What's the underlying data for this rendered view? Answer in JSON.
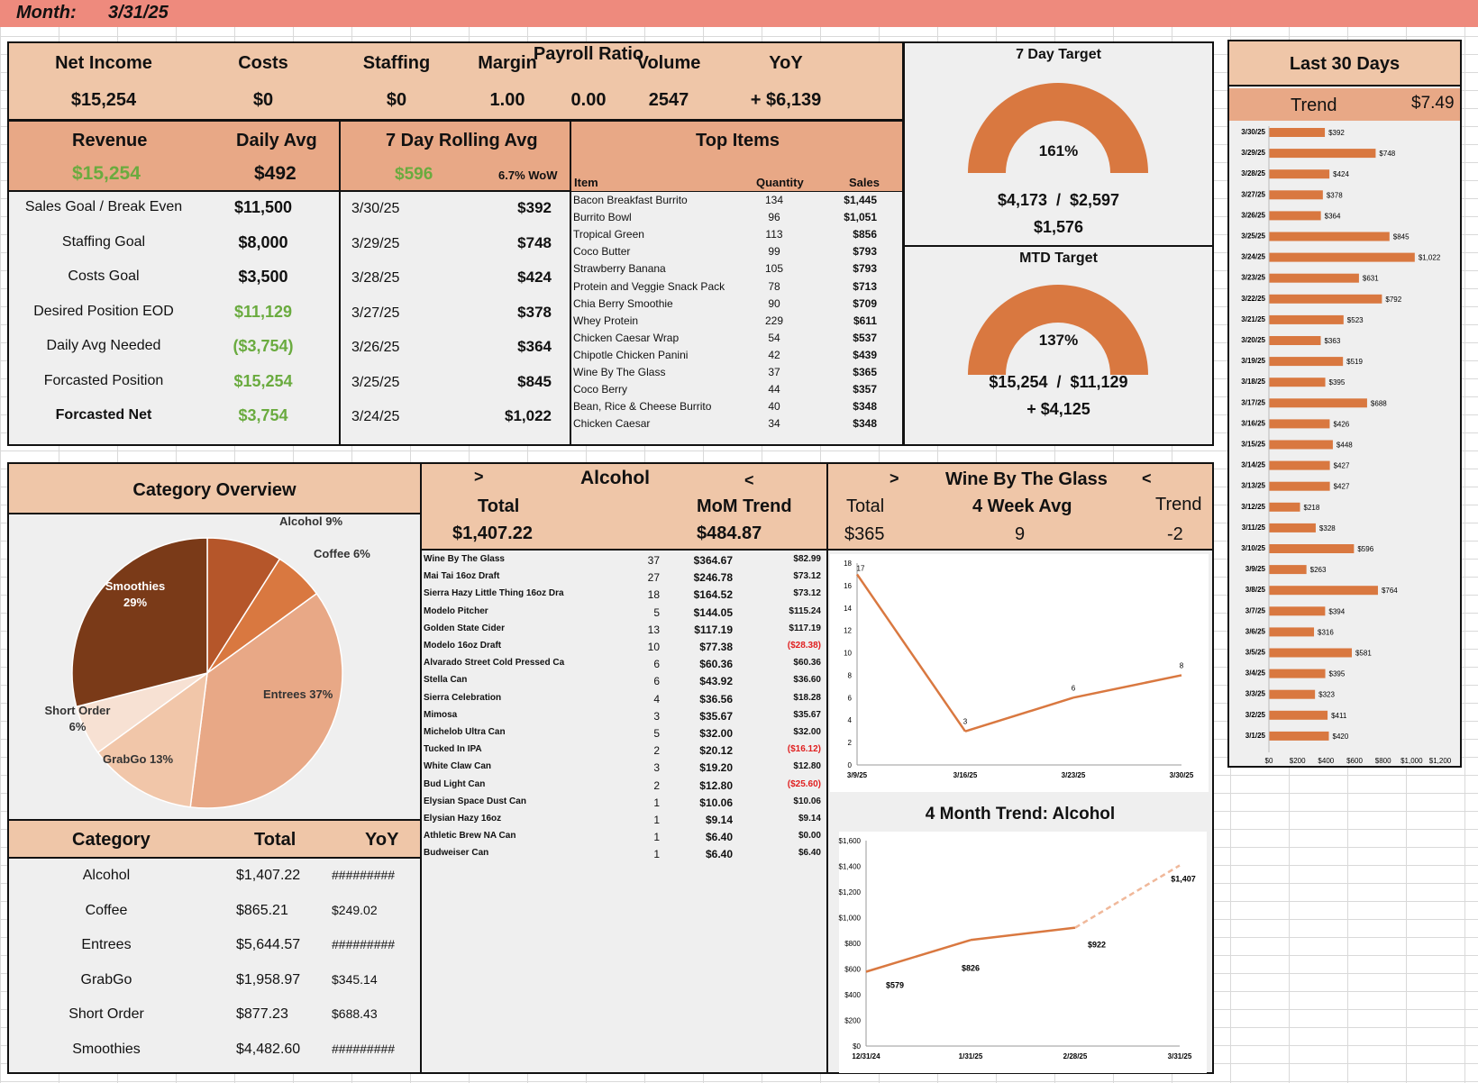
{
  "header": {
    "month_label": "Month:",
    "month_value": "3/31/25"
  },
  "kpis": [
    {
      "label": "Net Income",
      "value": "$15,254"
    },
    {
      "label": "Costs",
      "value": "$0"
    },
    {
      "label": "Staffing",
      "value": "$0"
    },
    {
      "label": "Margin",
      "value": "1.00"
    },
    {
      "label": "Payroll Ratio",
      "value": "0.00"
    },
    {
      "label": "Volume",
      "value": "2547"
    },
    {
      "label": "YoY",
      "value": "+ $6,139"
    }
  ],
  "revenue": {
    "label": "Revenue",
    "value": "$15,254",
    "daily_avg_label": "Daily Avg",
    "daily_avg": "$492"
  },
  "goals": [
    {
      "label": "Sales Goal / Break Even",
      "value": "$11,500",
      "color": "#111111"
    },
    {
      "label": "Staffing Goal",
      "value": "$8,000",
      "color": "#111111"
    },
    {
      "label": "Costs Goal",
      "value": "$3,500",
      "color": "#111111"
    },
    {
      "label": "Desired Position EOD",
      "value": "$11,129",
      "color": "#6aab3f"
    },
    {
      "label": "Daily Avg Needed",
      "value": "($3,754)",
      "color": "#6aab3f"
    },
    {
      "label": "Forcasted Position",
      "value": "$15,254",
      "color": "#6aab3f"
    },
    {
      "label": "Forcasted Net",
      "value": "$3,754",
      "color": "#6aab3f"
    }
  ],
  "rolling": {
    "title": "7 Day Rolling Avg",
    "value": "$596",
    "wow": "6.7% WoW",
    "rows": [
      {
        "date": "3/30/25",
        "value": "$392"
      },
      {
        "date": "3/29/25",
        "value": "$748"
      },
      {
        "date": "3/28/25",
        "value": "$424"
      },
      {
        "date": "3/27/25",
        "value": "$378"
      },
      {
        "date": "3/26/25",
        "value": "$364"
      },
      {
        "date": "3/25/25",
        "value": "$845"
      },
      {
        "date": "3/24/25",
        "value": "$1,022"
      }
    ]
  },
  "top_items": {
    "title": "Top Items",
    "headers": [
      "Item",
      "Quantity",
      "Sales"
    ],
    "rows": [
      [
        "Bacon Breakfast Burrito",
        "134",
        "$1,445"
      ],
      [
        "Burrito Bowl",
        "96",
        "$1,051"
      ],
      [
        "Tropical Green",
        "113",
        "$856"
      ],
      [
        "Coco Butter",
        "99",
        "$793"
      ],
      [
        "Strawberry Banana",
        "105",
        "$793"
      ],
      [
        "Protein and Veggie Snack Pack",
        "78",
        "$713"
      ],
      [
        "Chia Berry Smoothie",
        "90",
        "$709"
      ],
      [
        "Whey Protein",
        "229",
        "$611"
      ],
      [
        "Chicken Caesar Wrap",
        "54",
        "$537"
      ],
      [
        "Chipotle Chicken Panini",
        "42",
        "$439"
      ],
      [
        "Wine By The Glass",
        "37",
        "$365"
      ],
      [
        "Coco Berry",
        "44",
        "$357"
      ],
      [
        "Bean, Rice & Cheese Burrito",
        "40",
        "$348"
      ],
      [
        "Chicken Caesar",
        "34",
        "$348"
      ]
    ]
  },
  "target7": {
    "title": "7 Day Target",
    "pct": "161%",
    "fraction": 1.0,
    "ratio": "$4,173  /  $2,597",
    "diff": "$1,576",
    "color": "#d97840"
  },
  "targetMTD": {
    "title": "MTD Target",
    "pct": "137%",
    "fraction": 1.0,
    "ratio": "$15,254  /  $11,129",
    "diff": "+ $4,125",
    "color": "#d97840"
  },
  "last30": {
    "title": "Last 30 Days",
    "trend_label": "Trend",
    "trend_value": "$7.49"
  },
  "category_overview": {
    "title": "Category Overview"
  },
  "categories": {
    "headers": [
      "Category",
      "Total",
      "YoY"
    ],
    "rows": [
      [
        "Alcohol",
        "$1,407.22",
        "#########"
      ],
      [
        "Coffee",
        "$865.21",
        "$249.02"
      ],
      [
        "Entrees",
        "$5,644.57",
        "#########"
      ],
      [
        "GrabGo",
        "$1,958.97",
        "$345.14"
      ],
      [
        "Short Order",
        "$877.23",
        "$688.43"
      ],
      [
        "Smoothies",
        "$4,482.60",
        "#########"
      ]
    ]
  },
  "alcohol": {
    "title": "Alcohol",
    "prev": ">",
    "next": "<",
    "total_label": "Total",
    "total": "$1,407.22",
    "trend_label": "MoM Trend",
    "trend": "$484.87",
    "rows": [
      [
        "Wine By The Glass",
        "37",
        "$364.67",
        "$82.99"
      ],
      [
        "Mai Tai 16oz Draft",
        "27",
        "$246.78",
        "$73.12"
      ],
      [
        "Sierra Hazy Little Thing 16oz Dra",
        "18",
        "$164.52",
        "$73.12"
      ],
      [
        "Modelo Pitcher",
        "5",
        "$144.05",
        "$115.24"
      ],
      [
        "Golden State Cider",
        "13",
        "$117.19",
        "$117.19"
      ],
      [
        "Modelo 16oz Draft",
        "10",
        "$77.38",
        "($28.38)"
      ],
      [
        "Alvarado Street Cold Pressed Ca",
        "6",
        "$60.36",
        "$60.36"
      ],
      [
        "Stella Can",
        "6",
        "$43.92",
        "$36.60"
      ],
      [
        "Sierra Celebration",
        "4",
        "$36.56",
        "$18.28"
      ],
      [
        "Mimosa",
        "3",
        "$35.67",
        "$35.67"
      ],
      [
        "Michelob Ultra Can",
        "5",
        "$32.00",
        "$32.00"
      ],
      [
        "Tucked In IPA",
        "2",
        "$20.12",
        "($16.12)"
      ],
      [
        "White Claw Can",
        "3",
        "$19.20",
        "$12.80"
      ],
      [
        "Bud Light Can",
        "2",
        "$12.80",
        "($25.60)"
      ],
      [
        "Elysian Space Dust Can",
        "1",
        "$10.06",
        "$10.06"
      ],
      [
        "Elysian Hazy 16oz",
        "1",
        "$9.14",
        "$9.14"
      ],
      [
        "Athletic Brew NA Can",
        "1",
        "$6.40",
        "$0.00"
      ],
      [
        "Budweiser Can",
        "1",
        "$6.40",
        "$6.40"
      ]
    ]
  },
  "wine": {
    "title": "Wine By The Glass",
    "prev": ">",
    "next": "<",
    "total_label": "Total",
    "total": "$365",
    "avg_label": "4 Week Avg",
    "avg": "9",
    "trend_label": "Trend",
    "trend": "-2"
  },
  "chart_data": [
    {
      "type": "bar",
      "title": "",
      "categories": [
        "3/30/25",
        "3/29/25",
        "3/28/25",
        "3/27/25",
        "3/26/25",
        "3/25/25",
        "3/24/25",
        "3/23/25",
        "3/22/25",
        "3/21/25",
        "3/20/25",
        "3/19/25",
        "3/18/25",
        "3/17/25",
        "3/16/25",
        "3/15/25",
        "3/14/25",
        "3/13/25",
        "3/12/25",
        "3/11/25",
        "3/10/25",
        "3/9/25",
        "3/8/25",
        "3/7/25",
        "3/6/25",
        "3/5/25",
        "3/4/25",
        "3/3/25",
        "3/2/25",
        "3/1/25"
      ],
      "values": [
        392,
        748,
        424,
        378,
        364,
        845,
        1022,
        631,
        792,
        523,
        363,
        519,
        395,
        688,
        426,
        448,
        427,
        427,
        218,
        328,
        596,
        263,
        764,
        394,
        316,
        581,
        395,
        323,
        411,
        420
      ],
      "labels": [
        "$392",
        "$748",
        "$424",
        "$378",
        "$364",
        "$845",
        "$1,022",
        "$631",
        "$792",
        "$523",
        "$363",
        "$519",
        "$395",
        "$688",
        "$426",
        "$448",
        "$427",
        "$427",
        "$218",
        "$328",
        "$596",
        "$263",
        "$764",
        "$394",
        "$316",
        "$581",
        "$395",
        "$323",
        "$411",
        "$420"
      ],
      "xticks": [
        "$0",
        "$200",
        "$400",
        "$600",
        "$800",
        "$1,000",
        "$1,200"
      ],
      "xlim": [
        0,
        1200
      ],
      "orientation": "horizontal",
      "color": "#d97840"
    },
    {
      "type": "pie",
      "title": "",
      "slices": [
        {
          "name": "Alcohol",
          "value": 9,
          "label": "Alcohol 9%",
          "color": "#b5562a"
        },
        {
          "name": "Coffee",
          "value": 6,
          "label": "Coffee 6%",
          "color": "#d97840"
        },
        {
          "name": "Entrees",
          "value": 37,
          "label": "Entrees 37%",
          "color": "#e8a886"
        },
        {
          "name": "GrabGo",
          "value": 13,
          "label": "GrabGo 13%",
          "color": "#f1c6a9"
        },
        {
          "name": "Short Order",
          "value": 6,
          "label": "Short Order 6%",
          "color": "#f7e1d3"
        },
        {
          "name": "Smoothies",
          "value": 29,
          "label": "Smoothies 29%",
          "color": "#7a3a18"
        }
      ]
    },
    {
      "type": "line",
      "title": "",
      "x": [
        "3/9/25",
        "3/16/25",
        "3/23/25",
        "3/30/25"
      ],
      "values": [
        17,
        3,
        6,
        8
      ],
      "ylim": [
        0,
        18
      ],
      "yticks": [
        "0",
        "2",
        "4",
        "6",
        "8",
        "10",
        "12",
        "14",
        "16",
        "18"
      ],
      "color": "#d97840"
    },
    {
      "type": "line",
      "title": "4 Month Trend: Alcohol",
      "x": [
        "12/31/24",
        "1/31/25",
        "2/28/25",
        "3/31/25"
      ],
      "values": [
        579,
        826,
        922,
        1407
      ],
      "labels": [
        "$579",
        "$826",
        "$922",
        "$1,407"
      ],
      "ylim": [
        0,
        1600
      ],
      "yticks": [
        "$0",
        "$200",
        "$400",
        "$600",
        "$800",
        "$1,000",
        "$1,200",
        "$1,400",
        "$1,600"
      ],
      "color": "#d97840"
    }
  ]
}
